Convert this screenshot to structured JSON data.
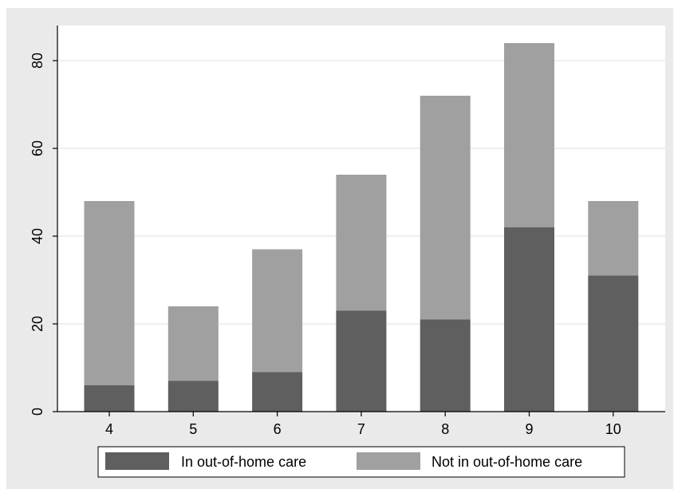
{
  "chart_data": {
    "type": "bar",
    "stacked": true,
    "categories": [
      "4",
      "5",
      "6",
      "7",
      "8",
      "9",
      "10"
    ],
    "series": [
      {
        "name": "In out-of-home care",
        "values": [
          6,
          7,
          9,
          23,
          21,
          42,
          31
        ],
        "color": "#5f5f5f"
      },
      {
        "name": "Not in out-of-home care",
        "values": [
          42,
          17,
          28,
          31,
          51,
          42,
          17
        ],
        "color": "#a0a0a0"
      }
    ],
    "totals": [
      48,
      24,
      37,
      54,
      72,
      84,
      48
    ],
    "ylim": [
      0,
      88
    ],
    "yticks": [
      "0",
      "20",
      "40",
      "60",
      "80"
    ],
    "ytick_values": [
      0,
      20,
      40,
      60,
      80
    ],
    "grid": "horizontal",
    "legend_position": "bottom",
    "title": "",
    "xlabel": "",
    "ylabel": ""
  },
  "colors": {
    "background": "#eaeaea",
    "plot_background": "#ffffff",
    "grid": "#eaeaea",
    "axis": "#000000"
  }
}
